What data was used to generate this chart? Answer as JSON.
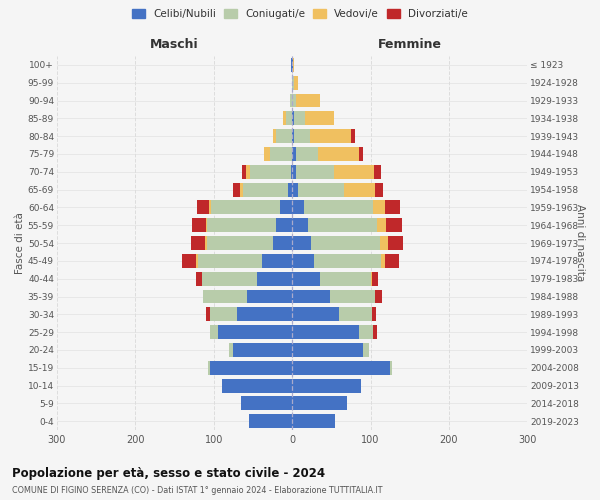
{
  "age_groups": [
    "0-4",
    "5-9",
    "10-14",
    "15-19",
    "20-24",
    "25-29",
    "30-34",
    "35-39",
    "40-44",
    "45-49",
    "50-54",
    "55-59",
    "60-64",
    "65-69",
    "70-74",
    "75-79",
    "80-84",
    "85-89",
    "90-94",
    "95-99",
    "100+"
  ],
  "birth_years": [
    "2019-2023",
    "2014-2018",
    "2009-2013",
    "2004-2008",
    "1999-2003",
    "1994-1998",
    "1989-1993",
    "1984-1988",
    "1979-1983",
    "1974-1978",
    "1969-1973",
    "1964-1968",
    "1959-1963",
    "1954-1958",
    "1949-1953",
    "1944-1948",
    "1939-1943",
    "1934-1938",
    "1929-1933",
    "1924-1928",
    "≤ 1923"
  ],
  "colors": {
    "celibi": "#4472c4",
    "coniugati": "#b8ccaa",
    "vedovi": "#f0c060",
    "divorziati": "#c0282a"
  },
  "males": {
    "celibi": [
      55,
      65,
      90,
      105,
      75,
      95,
      70,
      58,
      45,
      38,
      24,
      20,
      15,
      5,
      2,
      0,
      0,
      0,
      0,
      0,
      1
    ],
    "coniugati": [
      0,
      0,
      0,
      2,
      5,
      10,
      35,
      55,
      70,
      82,
      85,
      88,
      88,
      58,
      52,
      28,
      20,
      8,
      3,
      0,
      0
    ],
    "vedovi": [
      0,
      0,
      0,
      0,
      0,
      0,
      0,
      0,
      0,
      2,
      2,
      2,
      3,
      4,
      5,
      8,
      5,
      3,
      0,
      0,
      0
    ],
    "divorziati": [
      0,
      0,
      0,
      0,
      0,
      0,
      5,
      0,
      8,
      18,
      18,
      18,
      15,
      8,
      5,
      0,
      0,
      0,
      0,
      0,
      0
    ]
  },
  "females": {
    "nubili": [
      55,
      70,
      88,
      125,
      90,
      85,
      60,
      48,
      35,
      28,
      24,
      20,
      15,
      8,
      5,
      5,
      3,
      2,
      0,
      0,
      1
    ],
    "coniugate": [
      0,
      0,
      0,
      2,
      8,
      18,
      42,
      58,
      65,
      85,
      88,
      88,
      88,
      58,
      48,
      28,
      20,
      14,
      5,
      2,
      0
    ],
    "vedove": [
      0,
      0,
      0,
      0,
      0,
      0,
      0,
      0,
      2,
      5,
      10,
      12,
      15,
      40,
      52,
      52,
      52,
      38,
      30,
      5,
      1
    ],
    "divorziate": [
      0,
      0,
      0,
      0,
      0,
      5,
      5,
      8,
      8,
      18,
      20,
      20,
      20,
      10,
      8,
      5,
      5,
      0,
      0,
      0,
      0
    ]
  },
  "title1": "Popolazione per età, sesso e stato civile - 2024",
  "title2": "COMUNE DI FIGINO SERENZA (CO) - Dati ISTAT 1° gennaio 2024 - Elaborazione TUTTITALIA.IT",
  "xlabel_left": "Maschi",
  "xlabel_right": "Femmine",
  "ylabel_left": "Fasce di età",
  "ylabel_right": "Anni di nascita",
  "xlim": 300,
  "legend_labels": [
    "Celibi/Nubili",
    "Coniugati/e",
    "Vedovi/e",
    "Divorziati/e"
  ],
  "background_color": "#f5f5f5",
  "grid_color": "#dddddd"
}
